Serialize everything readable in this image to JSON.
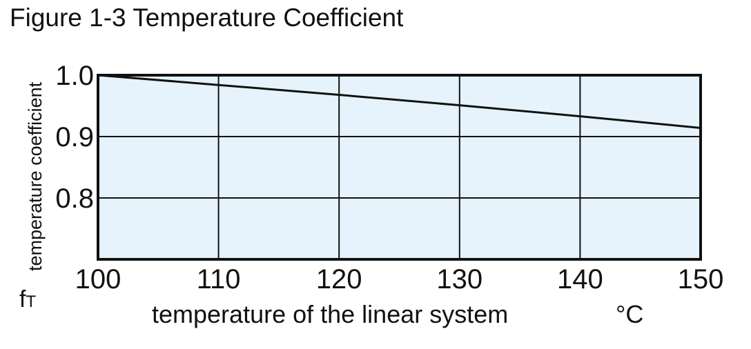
{
  "figure": {
    "title": "Figure 1-3 Temperature Coefficient"
  },
  "chart_data": {
    "type": "line",
    "title": "Figure 1-3 Temperature Coefficient",
    "xlabel": "temperature of the linear system",
    "xunit": "°C",
    "ylabel": "temperature coefficient",
    "ysymbol": "f",
    "ysymbol_sub": "T",
    "xlim": [
      100,
      150
    ],
    "ylim": [
      0.7,
      1.0
    ],
    "xticks": [
      100,
      110,
      120,
      130,
      140,
      150
    ],
    "xtick_labels": [
      "100",
      "110",
      "120",
      "130",
      "140",
      "150"
    ],
    "yticks": [
      0.8,
      0.9,
      1.0
    ],
    "ytick_labels": [
      "0.8",
      "0.9",
      "1.0"
    ],
    "grid": true,
    "series": [
      {
        "x": [
          100,
          110,
          120,
          130,
          140,
          150
        ],
        "y": [
          1.0,
          0.984,
          0.968,
          0.951,
          0.933,
          0.914
        ]
      }
    ],
    "colors": {
      "plot_fill": "#e6f3fc",
      "line": "#111111",
      "grid": "#111111",
      "frame": "#111111"
    }
  }
}
